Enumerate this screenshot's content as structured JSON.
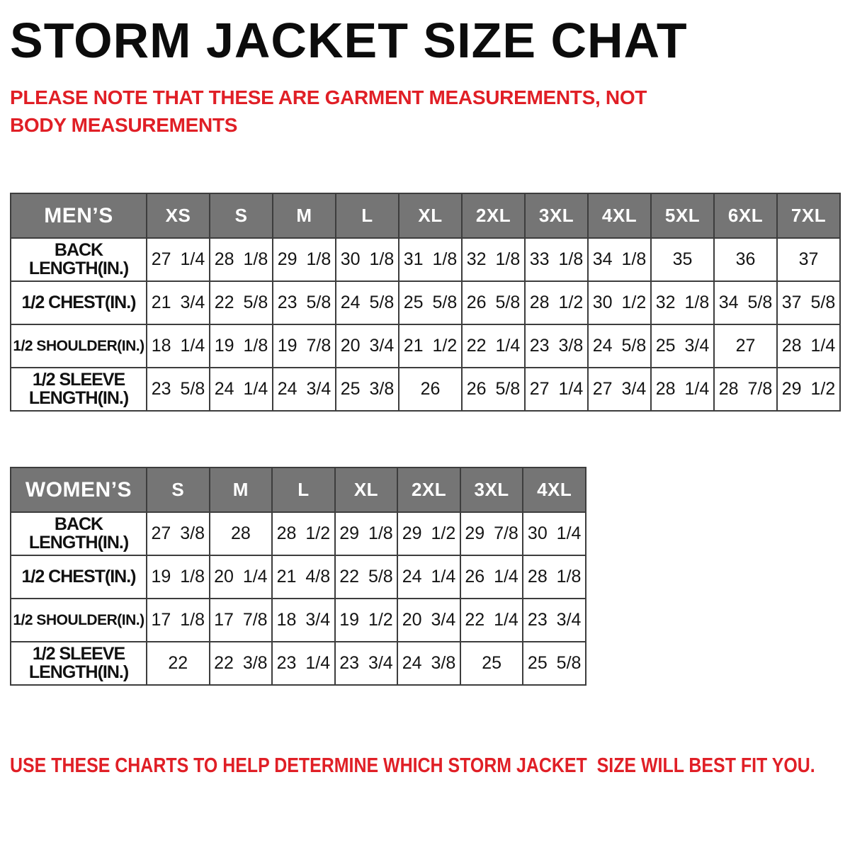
{
  "page": {
    "title": "STORM JACKET SIZE CHAT",
    "disclaimer": "PLEASE NOTE THAT THESE ARE GARMENT MEASUREMENTS, NOT BODY MEASUREMENTS",
    "footer_note": "USE THESE CHARTS TO HELP DETERMINE WHICH STORM JACKET  SIZE WILL BEST FIT YOU."
  },
  "colors": {
    "accent_red": "#e01f26",
    "header_gray": "#757575",
    "table_border": "#3d3d3d",
    "title_black": "#0c0c0c"
  },
  "mens_table": {
    "group_label": "MEN’S",
    "sizes": [
      "XS",
      "S",
      "M",
      "L",
      "XL",
      "2XL",
      "3XL",
      "4XL",
      "5XL",
      "6XL",
      "7XL"
    ],
    "rows": [
      {
        "label": "BACK\nLENGTH(IN.)",
        "values": [
          "27 1/4",
          "28 1/8",
          "29 1/8",
          "30 1/8",
          "31 1/8",
          "32 1/8",
          "33 1/8",
          "34 1/8",
          "35",
          "36",
          "37"
        ]
      },
      {
        "label": "1/2 CHEST(IN.)",
        "values": [
          "21 3/4",
          "22 5/8",
          "23 5/8",
          "24 5/8",
          "25 5/8",
          "26 5/8",
          "28 1/2",
          "30 1/2",
          "32 1/8",
          "34 5/8",
          "37 5/8"
        ]
      },
      {
        "label": "1/2 SHOULDER(IN.)",
        "values": [
          "18 1/4",
          "19 1/8",
          "19 7/8",
          "20 3/4",
          "21 1/2",
          "22 1/4",
          "23 3/8",
          "24 5/8",
          "25 3/4",
          "27",
          "28 1/4"
        ]
      },
      {
        "label": "1/2 SLEEVE\nLENGTH(IN.)",
        "values": [
          "23 5/8",
          "24 1/4",
          "24 3/4",
          "25 3/8",
          "26",
          "26 5/8",
          "27 1/4",
          "27 3/4",
          "28 1/4",
          "28 7/8",
          "29 1/2"
        ]
      }
    ]
  },
  "womens_table": {
    "group_label": "WOMEN’S",
    "sizes": [
      "S",
      "M",
      "L",
      "XL",
      "2XL",
      "3XL",
      "4XL"
    ],
    "rows": [
      {
        "label": "BACK\nLENGTH(IN.)",
        "values": [
          "27 3/8",
          "28",
          "28 1/2",
          "29 1/8",
          "29 1/2",
          "29 7/8",
          "30 1/4"
        ]
      },
      {
        "label": "1/2 CHEST(IN.)",
        "values": [
          "19 1/8",
          "20 1/4",
          "21 4/8",
          "22 5/8",
          "24 1/4",
          "26 1/4",
          "28 1/8"
        ]
      },
      {
        "label": "1/2 SHOULDER(IN.)",
        "values": [
          "17 1/8",
          "17 7/8",
          "18 3/4",
          "19 1/2",
          "20 3/4",
          "22 1/4",
          "23 3/4"
        ]
      },
      {
        "label": "1/2 SLEEVE\nLENGTH(IN.)",
        "values": [
          "22",
          "22 3/8",
          "23 1/4",
          "23 3/4",
          "24 3/8",
          "25",
          "25 5/8"
        ]
      }
    ]
  }
}
